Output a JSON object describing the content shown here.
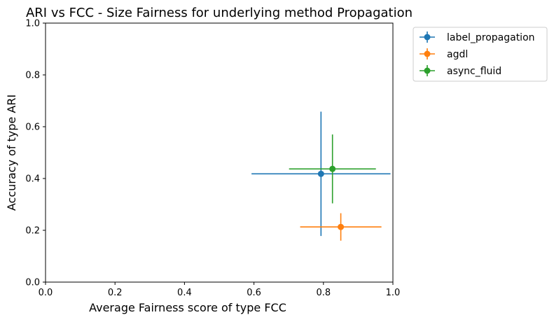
{
  "chart_data": {
    "type": "scatter",
    "title": "ARI vs FCC - Size Fairness for underlying method Propagation",
    "xlabel": "Average Fairness score of type FCC",
    "ylabel": "Accuracy of type ARI",
    "xlim": [
      0.0,
      1.0
    ],
    "ylim": [
      0.0,
      1.0
    ],
    "xticks": [
      "0.0",
      "0.2",
      "0.4",
      "0.6",
      "0.8",
      "1.0"
    ],
    "yticks": [
      "0.0",
      "0.2",
      "0.4",
      "0.6",
      "0.8",
      "1.0"
    ],
    "grid": false,
    "legend_position": "outside-top-right",
    "series": [
      {
        "name": "label_propagation",
        "color": "#1f77b4",
        "x": 0.793,
        "y": 0.418,
        "xerr": 0.2,
        "yerr": 0.24
      },
      {
        "name": "agdl",
        "color": "#ff7f0e",
        "x": 0.85,
        "y": 0.213,
        "xerr": 0.117,
        "yerr": 0.053
      },
      {
        "name": "async_fluid",
        "color": "#2ca02c",
        "x": 0.826,
        "y": 0.437,
        "xerr": 0.125,
        "yerr": 0.133
      }
    ]
  }
}
